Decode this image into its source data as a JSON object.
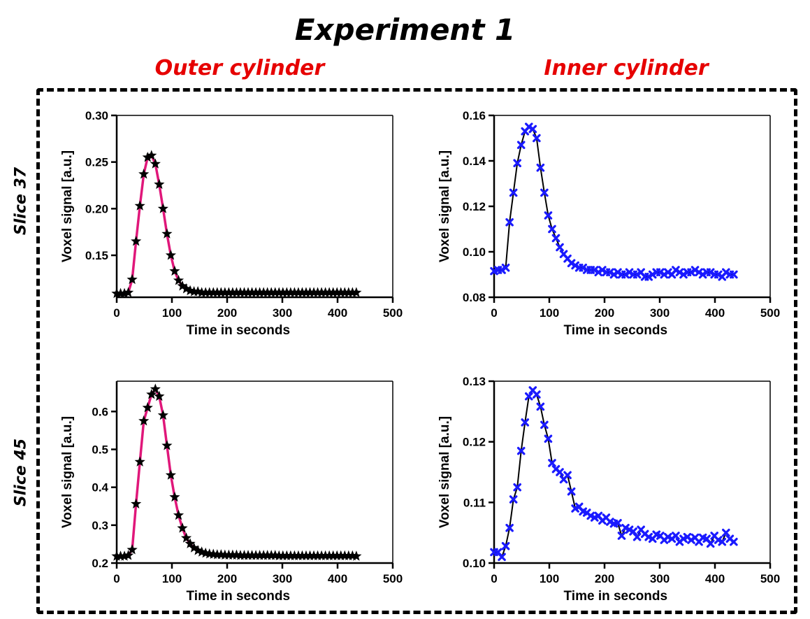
{
  "title": "Experiment 1",
  "column_headers": [
    "Outer cylinder",
    "Inner cylinder"
  ],
  "row_headers": [
    "Slice 37",
    "Slice 45"
  ],
  "colors": {
    "title": "#000000",
    "column_header": "#e60000",
    "outer_line": "#e0177a",
    "inner_line": "#000000",
    "outer_marker": "#000000",
    "inner_marker": "#1a1aff"
  },
  "chart_data": [
    {
      "type": "line",
      "id": "slice37-outer",
      "xlabel": "Time in seconds",
      "ylabel": "Voxel signal [a.u.]",
      "xlim": [
        0,
        500
      ],
      "ylim": [
        0.105,
        0.3
      ],
      "xticks": [
        0,
        100,
        200,
        300,
        400,
        500
      ],
      "yticks": [
        0.15,
        0.2,
        0.25,
        0.3
      ],
      "ytick_labels": [
        "0.15",
        "0.20",
        "0.25",
        "0.30"
      ],
      "marker": "star",
      "x": [
        0,
        7,
        14,
        21,
        28,
        35,
        42,
        49,
        56,
        63,
        70,
        77,
        84,
        91,
        98,
        105,
        112,
        119,
        126,
        133,
        140,
        147,
        154,
        161,
        168,
        175,
        182,
        189,
        196,
        203,
        210,
        217,
        224,
        231,
        238,
        245,
        252,
        259,
        266,
        273,
        280,
        287,
        294,
        301,
        308,
        315,
        322,
        329,
        336,
        343,
        350,
        357,
        364,
        371,
        378,
        385,
        392,
        399,
        406,
        413,
        420,
        427,
        434
      ],
      "y": [
        0.109,
        0.109,
        0.109,
        0.11,
        0.124,
        0.165,
        0.203,
        0.237,
        0.255,
        0.257,
        0.248,
        0.226,
        0.2,
        0.173,
        0.15,
        0.133,
        0.123,
        0.117,
        0.114,
        0.112,
        0.111,
        0.111,
        0.11,
        0.11,
        0.11,
        0.11,
        0.11,
        0.11,
        0.11,
        0.11,
        0.11,
        0.11,
        0.11,
        0.11,
        0.11,
        0.11,
        0.11,
        0.11,
        0.11,
        0.11,
        0.11,
        0.11,
        0.11,
        0.11,
        0.11,
        0.11,
        0.11,
        0.11,
        0.11,
        0.11,
        0.11,
        0.11,
        0.11,
        0.11,
        0.11,
        0.11,
        0.11,
        0.11,
        0.11,
        0.11,
        0.11,
        0.11,
        0.11
      ]
    },
    {
      "type": "line",
      "id": "slice37-inner",
      "xlabel": "Time in seconds",
      "ylabel": "Voxel signal [a.u.]",
      "xlim": [
        0,
        500
      ],
      "ylim": [
        0.08,
        0.16
      ],
      "xticks": [
        0,
        100,
        200,
        300,
        400,
        500
      ],
      "yticks": [
        0.08,
        0.1,
        0.12,
        0.14,
        0.16
      ],
      "ytick_labels": [
        "0.08",
        "0.10",
        "0.12",
        "0.14",
        "0.16"
      ],
      "marker": "x",
      "x": [
        0,
        7,
        14,
        21,
        28,
        35,
        42,
        49,
        56,
        63,
        70,
        77,
        84,
        91,
        98,
        105,
        112,
        119,
        126,
        133,
        140,
        147,
        154,
        161,
        168,
        175,
        182,
        189,
        196,
        203,
        210,
        217,
        224,
        231,
        238,
        245,
        252,
        259,
        266,
        273,
        280,
        287,
        294,
        301,
        308,
        315,
        322,
        329,
        336,
        343,
        350,
        357,
        364,
        371,
        378,
        385,
        392,
        399,
        406,
        413,
        420,
        427,
        434
      ],
      "y": [
        0.0915,
        0.092,
        0.092,
        0.093,
        0.113,
        0.126,
        0.139,
        0.147,
        0.153,
        0.155,
        0.154,
        0.15,
        0.137,
        0.126,
        0.116,
        0.11,
        0.106,
        0.102,
        0.099,
        0.097,
        0.095,
        0.094,
        0.093,
        0.093,
        0.092,
        0.092,
        0.092,
        0.091,
        0.092,
        0.091,
        0.091,
        0.09,
        0.091,
        0.09,
        0.09,
        0.091,
        0.09,
        0.09,
        0.091,
        0.089,
        0.089,
        0.09,
        0.091,
        0.091,
        0.09,
        0.091,
        0.09,
        0.092,
        0.091,
        0.09,
        0.091,
        0.091,
        0.092,
        0.091,
        0.09,
        0.091,
        0.091,
        0.09,
        0.09,
        0.089,
        0.091,
        0.09,
        0.09
      ]
    },
    {
      "type": "line",
      "id": "slice45-outer",
      "xlabel": "Time in seconds",
      "ylabel": "Voxel signal [a.u.]",
      "xlim": [
        0,
        500
      ],
      "ylim": [
        0.2,
        0.68
      ],
      "xticks": [
        0,
        100,
        200,
        300,
        400,
        500
      ],
      "yticks": [
        0.2,
        0.3,
        0.4,
        0.5,
        0.6
      ],
      "ytick_labels": [
        "0.2",
        "0.3",
        "0.4",
        "0.5",
        "0.6"
      ],
      "marker": "star",
      "x": [
        0,
        7,
        14,
        21,
        28,
        35,
        42,
        49,
        56,
        63,
        70,
        77,
        84,
        91,
        98,
        105,
        112,
        119,
        126,
        133,
        140,
        147,
        154,
        161,
        168,
        175,
        182,
        189,
        196,
        203,
        210,
        217,
        224,
        231,
        238,
        245,
        252,
        259,
        266,
        273,
        280,
        287,
        294,
        301,
        308,
        315,
        322,
        329,
        336,
        343,
        350,
        357,
        364,
        371,
        378,
        385,
        392,
        399,
        406,
        413,
        420,
        427,
        434
      ],
      "y": [
        0.218,
        0.218,
        0.218,
        0.22,
        0.235,
        0.356,
        0.467,
        0.575,
        0.61,
        0.645,
        0.659,
        0.64,
        0.59,
        0.51,
        0.432,
        0.374,
        0.326,
        0.292,
        0.266,
        0.251,
        0.24,
        0.233,
        0.229,
        0.226,
        0.224,
        0.223,
        0.222,
        0.222,
        0.221,
        0.221,
        0.221,
        0.221,
        0.22,
        0.22,
        0.22,
        0.22,
        0.22,
        0.22,
        0.22,
        0.22,
        0.22,
        0.22,
        0.219,
        0.219,
        0.219,
        0.219,
        0.219,
        0.219,
        0.219,
        0.219,
        0.219,
        0.219,
        0.219,
        0.219,
        0.219,
        0.219,
        0.219,
        0.219,
        0.219,
        0.219,
        0.219,
        0.219,
        0.218
      ]
    },
    {
      "type": "line",
      "id": "slice45-inner",
      "xlabel": "Time in seconds",
      "ylabel": "Voxel signal [a.u.]",
      "xlim": [
        0,
        500
      ],
      "ylim": [
        0.1,
        0.13
      ],
      "xticks": [
        0,
        100,
        200,
        300,
        400,
        500
      ],
      "yticks": [
        0.1,
        0.11,
        0.12,
        0.13
      ],
      "ytick_labels": [
        "0.10",
        "0.11",
        "0.12",
        "0.13"
      ],
      "marker": "x",
      "x": [
        0,
        7,
        14,
        21,
        28,
        35,
        42,
        49,
        56,
        63,
        70,
        77,
        84,
        91,
        98,
        105,
        112,
        119,
        126,
        133,
        140,
        147,
        154,
        161,
        168,
        175,
        182,
        189,
        196,
        203,
        210,
        217,
        224,
        231,
        238,
        245,
        252,
        259,
        266,
        273,
        280,
        287,
        294,
        301,
        308,
        315,
        322,
        329,
        336,
        343,
        350,
        357,
        364,
        371,
        378,
        385,
        392,
        399,
        406,
        413,
        420,
        427,
        434
      ],
      "y": [
        0.1018,
        0.1018,
        0.101,
        0.1028,
        0.1058,
        0.1105,
        0.1125,
        0.1185,
        0.1232,
        0.1275,
        0.1285,
        0.1278,
        0.1258,
        0.1228,
        0.1205,
        0.1165,
        0.1155,
        0.115,
        0.1138,
        0.1145,
        0.1118,
        0.109,
        0.1093,
        0.1085,
        0.1083,
        0.1078,
        0.1075,
        0.1078,
        0.107,
        0.1075,
        0.1068,
        0.1065,
        0.1066,
        0.1045,
        0.1058,
        0.1055,
        0.1052,
        0.1043,
        0.1055,
        0.1048,
        0.1043,
        0.104,
        0.1047,
        0.1045,
        0.1038,
        0.1043,
        0.104,
        0.1045,
        0.1035,
        0.104,
        0.1043,
        0.1038,
        0.1042,
        0.1035,
        0.1042,
        0.104,
        0.1032,
        0.1045,
        0.1038,
        0.1035,
        0.105,
        0.104,
        0.1035
      ]
    }
  ]
}
